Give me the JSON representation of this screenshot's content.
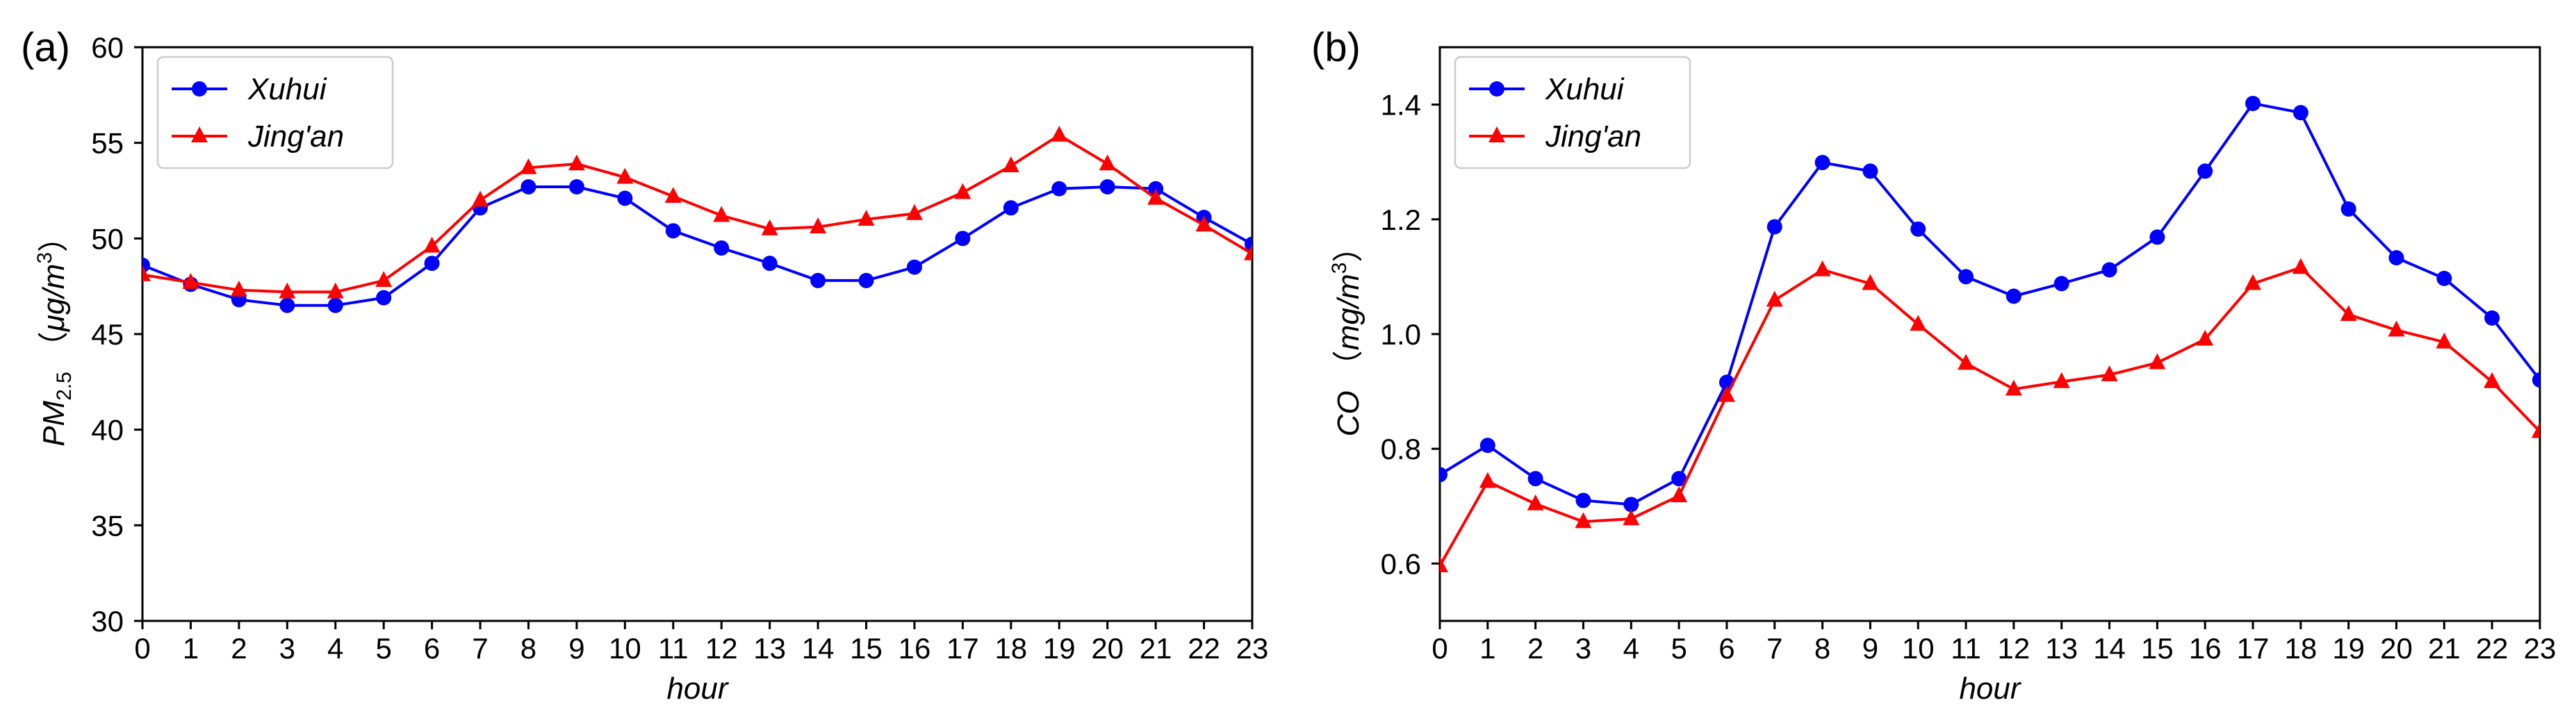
{
  "chart_data": [
    {
      "type": "line",
      "panel_label": "(a)",
      "title": "",
      "xlabel": "hour",
      "ylabel": {
        "main": "PM",
        "sub": "2.5",
        "unit_open": "（",
        "unit": "μg/m",
        "unit_sup": "3",
        "unit_close": "）"
      },
      "x": [
        0,
        1,
        2,
        3,
        4,
        5,
        6,
        7,
        8,
        9,
        10,
        11,
        12,
        13,
        14,
        15,
        16,
        17,
        18,
        19,
        20,
        21,
        22,
        23
      ],
      "xticks": [
        "0",
        "1",
        "2",
        "3",
        "4",
        "5",
        "6",
        "7",
        "8",
        "9",
        "10",
        "11",
        "12",
        "13",
        "14",
        "15",
        "16",
        "17",
        "18",
        "19",
        "20",
        "21",
        "22",
        "23"
      ],
      "xlim": [
        0,
        23
      ],
      "ylim": [
        30,
        60
      ],
      "yticks": [
        30,
        35,
        40,
        45,
        50,
        55,
        60
      ],
      "ytick_labels": [
        "30",
        "35",
        "40",
        "45",
        "50",
        "55",
        "60"
      ],
      "legend_position": "top-left",
      "grid": false,
      "series": [
        {
          "name": "Xuhui",
          "color": "#0000ff",
          "marker": "circle",
          "values": [
            48.6,
            47.6,
            46.8,
            46.5,
            46.5,
            46.9,
            48.7,
            51.6,
            52.7,
            52.7,
            52.1,
            50.4,
            49.5,
            48.7,
            47.8,
            47.8,
            48.5,
            50.0,
            51.6,
            52.6,
            52.7,
            52.6,
            51.1,
            49.7
          ]
        },
        {
          "name": "Jing'an",
          "color": "#ff0000",
          "marker": "triangle",
          "values": [
            48.1,
            47.7,
            47.3,
            47.2,
            47.2,
            47.8,
            49.6,
            52.0,
            53.7,
            53.9,
            53.2,
            52.2,
            51.2,
            50.5,
            50.6,
            51.0,
            51.3,
            52.4,
            53.8,
            55.4,
            53.9,
            52.1,
            50.7,
            49.2
          ]
        }
      ]
    },
    {
      "type": "line",
      "panel_label": "(b)",
      "title": "",
      "xlabel": "hour",
      "ylabel": {
        "main": "CO",
        "sub": "",
        "unit_open": "（",
        "unit": "mg/m",
        "unit_sup": "3",
        "unit_close": "）"
      },
      "x": [
        0,
        1,
        2,
        3,
        4,
        5,
        6,
        7,
        8,
        9,
        10,
        11,
        12,
        13,
        14,
        15,
        16,
        17,
        18,
        19,
        20,
        21,
        22,
        23
      ],
      "xticks": [
        "0",
        "1",
        "2",
        "3",
        "4",
        "5",
        "6",
        "7",
        "8",
        "9",
        "10",
        "11",
        "12",
        "13",
        "14",
        "15",
        "16",
        "17",
        "18",
        "19",
        "20",
        "21",
        "22",
        "23"
      ],
      "xlim": [
        0,
        23
      ],
      "ylim": [
        0.5,
        1.5
      ],
      "yticks": [
        0.6,
        0.8,
        1.0,
        1.2,
        1.4
      ],
      "ytick_labels": [
        "0.6",
        "0.8",
        "1.0",
        "1.2",
        "1.4"
      ],
      "legend_position": "top-left",
      "grid": false,
      "series": [
        {
          "name": "Xuhui",
          "color": "#0000ff",
          "marker": "circle",
          "values": [
            0.755,
            0.806,
            0.748,
            0.71,
            0.703,
            0.748,
            0.916,
            1.187,
            1.299,
            1.284,
            1.183,
            1.1,
            1.066,
            1.088,
            1.112,
            1.169,
            1.284,
            1.402,
            1.386,
            1.218,
            1.133,
            1.097,
            1.028,
            0.92
          ]
        },
        {
          "name": "Jing'an",
          "color": "#ff0000",
          "marker": "triangle",
          "values": [
            0.596,
            0.743,
            0.704,
            0.673,
            0.678,
            0.718,
            0.893,
            1.059,
            1.112,
            1.088,
            1.017,
            0.949,
            0.904,
            0.917,
            0.929,
            0.95,
            0.991,
            1.088,
            1.116,
            1.034,
            1.007,
            0.986,
            0.917,
            0.83
          ]
        }
      ]
    }
  ]
}
